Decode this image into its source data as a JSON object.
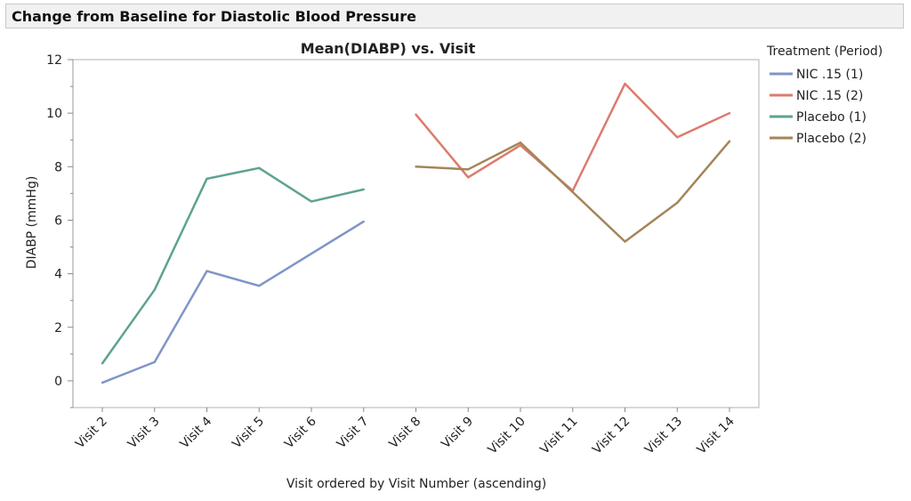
{
  "header": {
    "title": "Change from Baseline for Diastolic Blood Pressure"
  },
  "chart_data": {
    "type": "line",
    "title": "Mean(DIABP) vs. Visit",
    "xlabel": "Visit ordered by Visit Number (ascending)",
    "ylabel": "DIABP (mmHg)",
    "ylim": [
      -1,
      12
    ],
    "yticks": [
      0,
      2,
      4,
      6,
      8,
      10,
      12
    ],
    "grid": false,
    "legend_title": "Treatment (Period)",
    "legend_placement": "right",
    "categories": [
      "Visit 2",
      "Visit 3",
      "Visit 4",
      "Visit 5",
      "Visit 6",
      "Visit 7",
      "Visit 8",
      "Visit 9",
      "Visit 10",
      "Visit 11",
      "Visit 12",
      "Visit 13",
      "Visit 14"
    ],
    "series": [
      {
        "name": "NIC .15 (1)",
        "color": "#7f95c8",
        "values": [
          -0.07,
          0.7,
          4.1,
          3.55,
          4.75,
          5.95,
          null,
          null,
          null,
          null,
          null,
          null,
          null
        ]
      },
      {
        "name": "NIC .15 (2)",
        "color": "#dc7b6c",
        "values": [
          null,
          null,
          null,
          null,
          null,
          null,
          9.95,
          7.6,
          8.8,
          7.1,
          11.1,
          9.1,
          10.0
        ]
      },
      {
        "name": "Placebo (1)",
        "color": "#5ea292",
        "values": [
          0.65,
          3.4,
          7.55,
          7.95,
          6.7,
          7.15,
          null,
          null,
          null,
          null,
          null,
          null,
          null
        ]
      },
      {
        "name": "Placebo (2)",
        "color": "#a4855a",
        "values": [
          null,
          null,
          null,
          null,
          null,
          null,
          8.0,
          7.9,
          8.9,
          7.05,
          5.2,
          6.65,
          8.95
        ]
      }
    ]
  }
}
